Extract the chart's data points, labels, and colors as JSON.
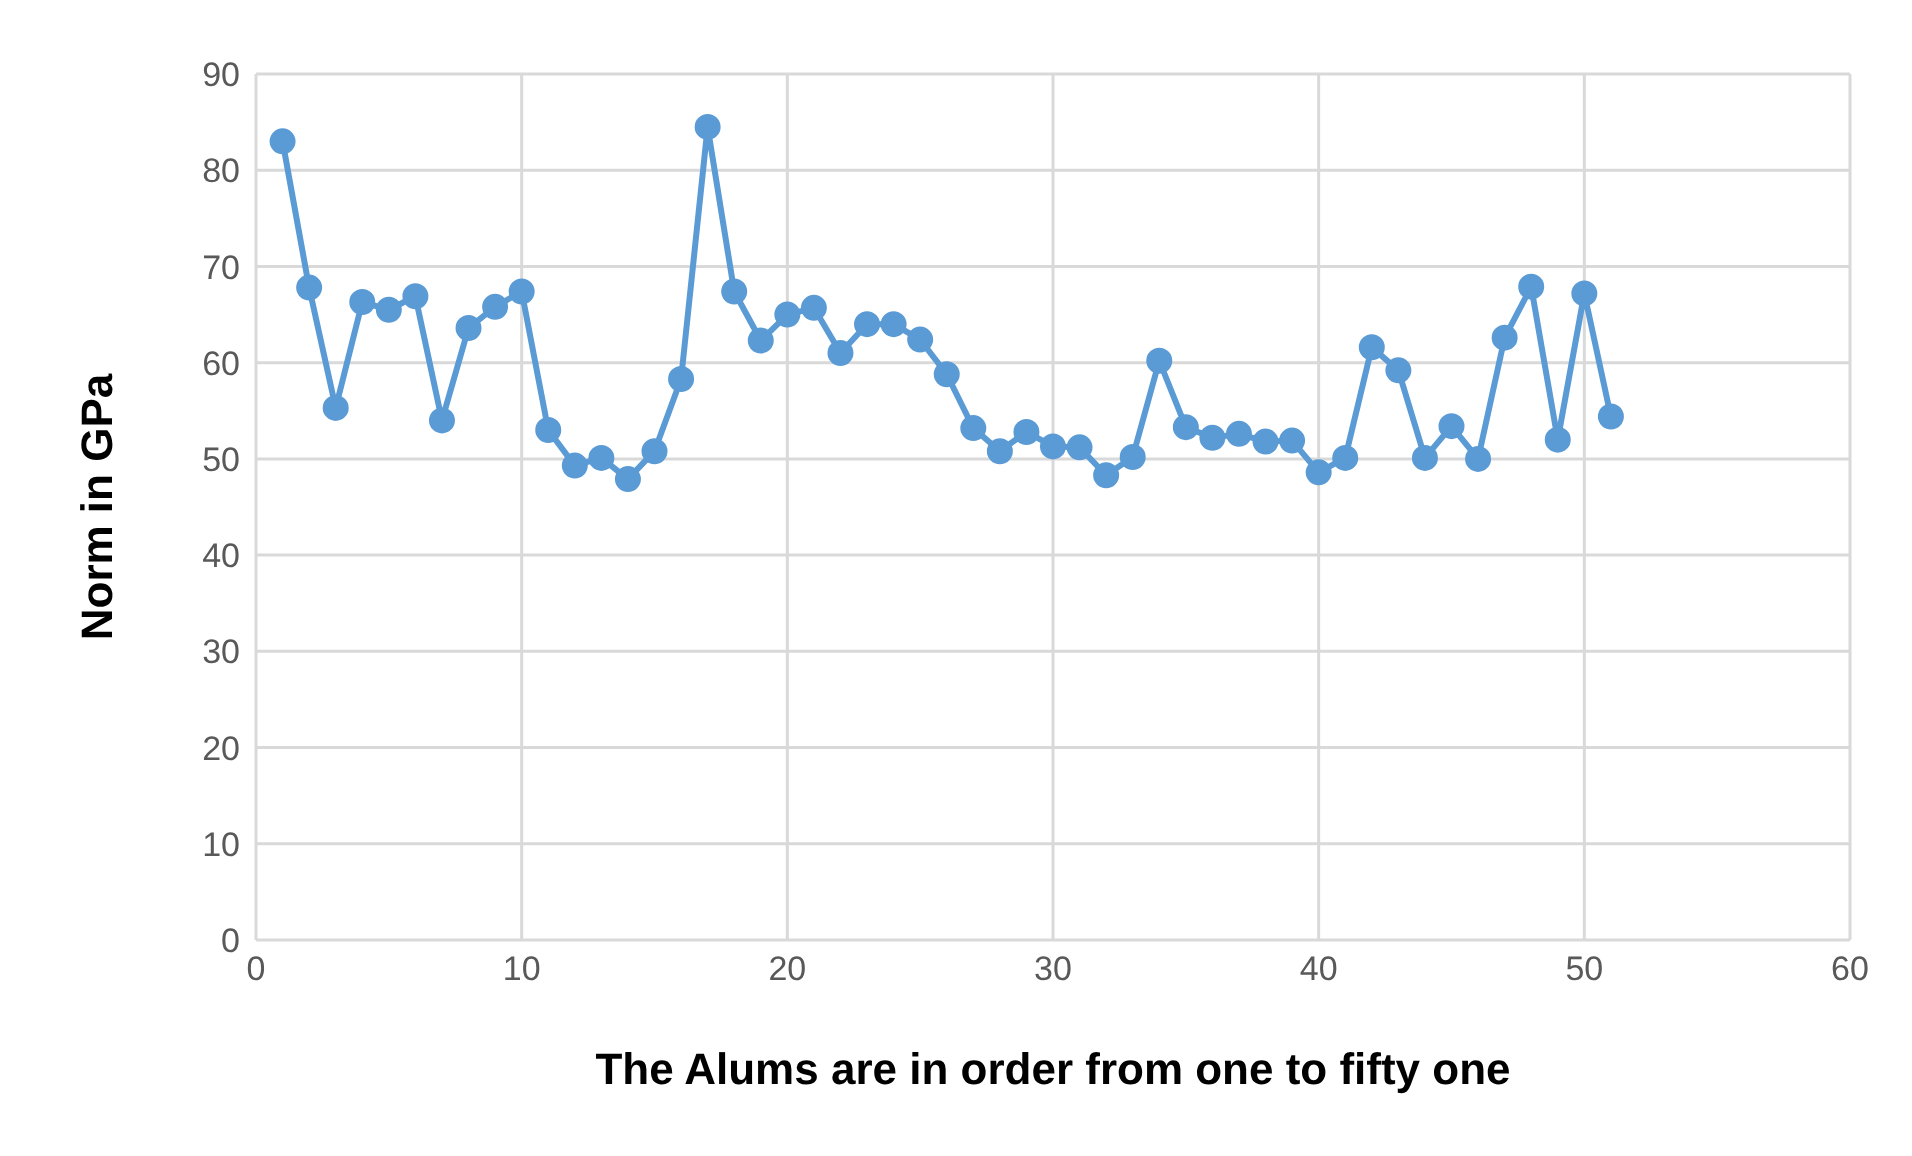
{
  "chart_data": {
    "type": "line",
    "xlabel": "The Alums are in order from one to fifty one",
    "ylabel": "Norm in GPa",
    "x": [
      1,
      2,
      3,
      4,
      5,
      6,
      7,
      8,
      9,
      10,
      11,
      12,
      13,
      14,
      15,
      16,
      17,
      18,
      19,
      20,
      21,
      22,
      23,
      24,
      25,
      26,
      27,
      28,
      29,
      30,
      31,
      32,
      33,
      34,
      35,
      36,
      37,
      38,
      39,
      40,
      41,
      42,
      43,
      44,
      45,
      46,
      47,
      48,
      49,
      50,
      51
    ],
    "series": [
      {
        "color": "#5b9bd5",
        "values": [
          83,
          67.8,
          55.3,
          66.3,
          65.5,
          66.9,
          54,
          63.6,
          65.8,
          67.4,
          53,
          49.3,
          50.1,
          47.9,
          50.8,
          58.3,
          84.5,
          67.4,
          62.3,
          65,
          65.7,
          61,
          64,
          64,
          62.4,
          58.8,
          53.2,
          50.8,
          52.8,
          51.3,
          51.2,
          48.3,
          50.2,
          60.2,
          53.3,
          52.2,
          52.6,
          51.8,
          51.9,
          48.6,
          50.1,
          61.6,
          59.2,
          50.1,
          53.4,
          50,
          62.6,
          67.9,
          52,
          67.2,
          54.4
        ]
      }
    ],
    "xlim": [
      0,
      60
    ],
    "xticks": [
      0,
      10,
      20,
      30,
      40,
      50,
      60
    ],
    "ylim": [
      0,
      90
    ],
    "yticks": [
      0,
      10,
      20,
      30,
      40,
      50,
      60,
      70,
      80,
      90
    ],
    "grid": true,
    "marker": "circle",
    "line_style": "solid",
    "legend": false
  }
}
